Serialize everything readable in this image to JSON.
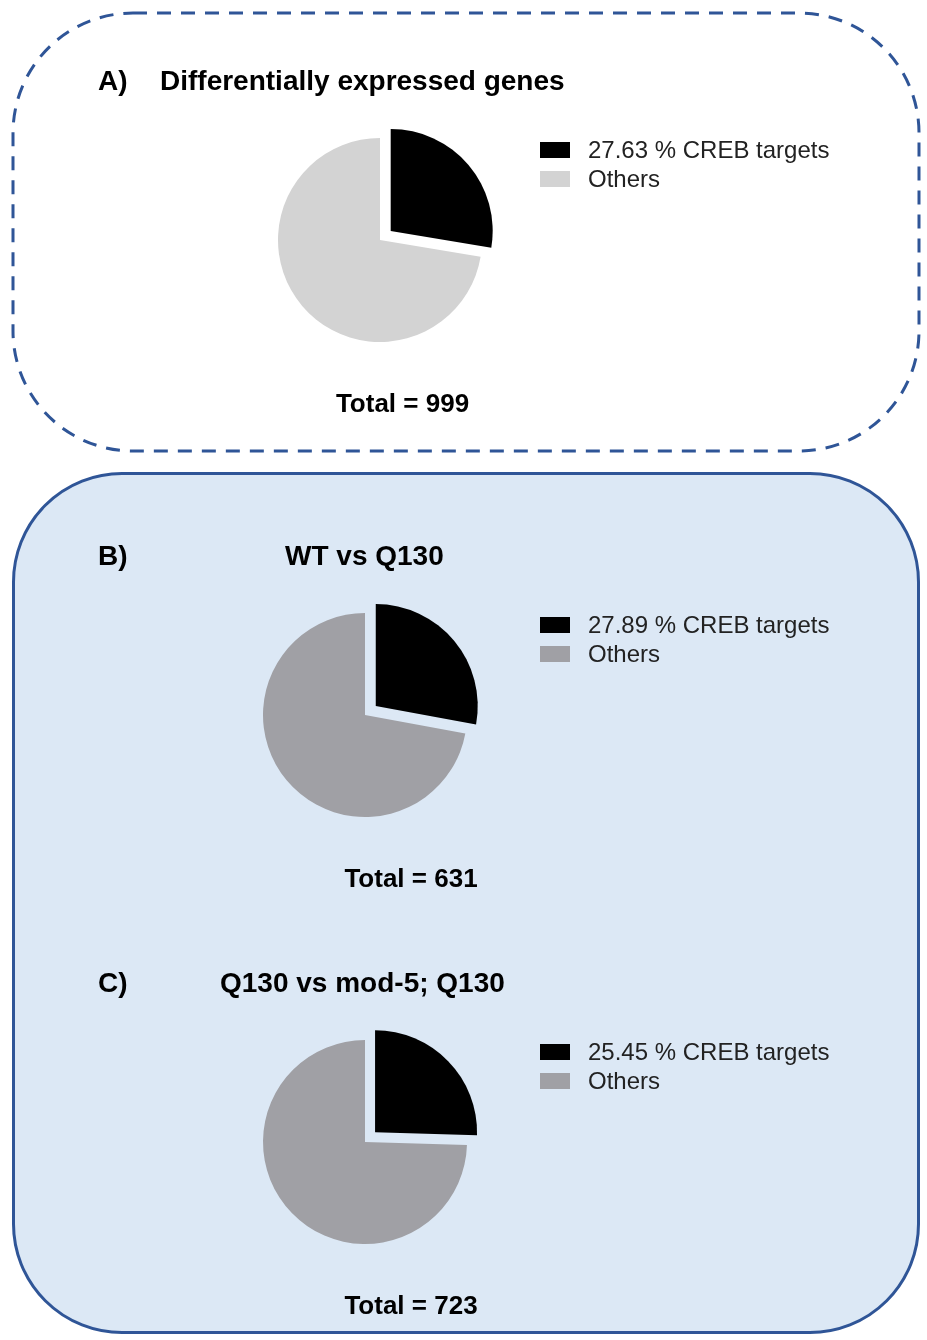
{
  "chart_data": [
    {
      "type": "pie",
      "title": "Differentially expressed genes",
      "categories": [
        "27.63 % CREB targets",
        "Others"
      ],
      "values": [
        27.63,
        72.37
      ],
      "colors": [
        "#000000",
        "#d3d3d3"
      ],
      "legend": "right",
      "annotations": [
        "A)",
        "Total = 999"
      ]
    },
    {
      "type": "pie",
      "title": "WT vs Q130",
      "categories": [
        "27.89 % CREB targets",
        "Others"
      ],
      "values": [
        27.89,
        72.11
      ],
      "colors": [
        "#000000",
        "#a0a0a5"
      ],
      "legend": "right",
      "annotations": [
        "B)",
        "Total = 631"
      ]
    },
    {
      "type": "pie",
      "title": "Q130 vs mod-5; Q130",
      "categories": [
        "25.45 % CREB targets",
        "Others"
      ],
      "values": [
        25.45,
        74.55
      ],
      "colors": [
        "#000000",
        "#a0a0a5"
      ],
      "legend": "right",
      "annotations": [
        "C)",
        "Total = 723"
      ]
    }
  ]
}
